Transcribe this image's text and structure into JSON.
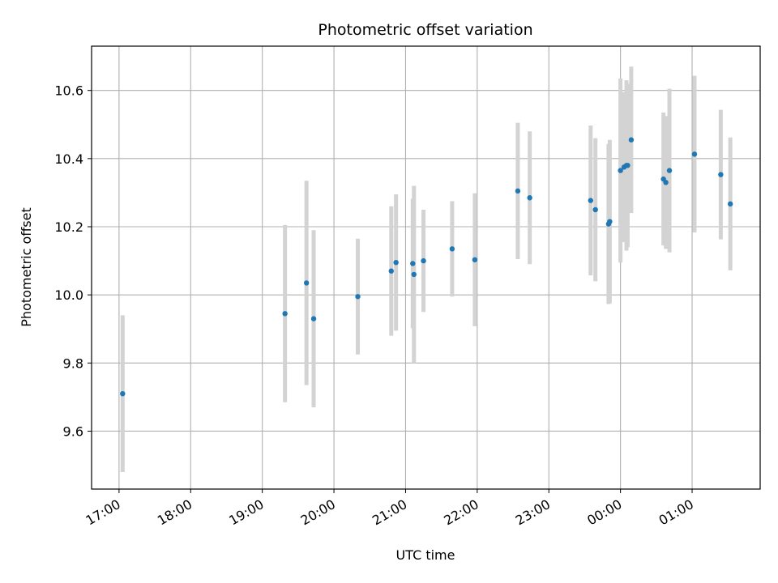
{
  "chart_data": {
    "type": "scatter",
    "title": "Photometric offset variation",
    "xlabel": "UTC time",
    "ylabel": "Photometric offset",
    "x_ticks": [
      "17:00",
      "18:00",
      "19:00",
      "20:00",
      "21:00",
      "22:00",
      "23:00",
      "00:00",
      "01:00"
    ],
    "y_ticks": [
      "9.6",
      "9.8",
      "10.0",
      "10.2",
      "10.4",
      "10.6"
    ],
    "xlim": [
      "16:37",
      "01:57"
    ],
    "ylim": [
      9.43,
      10.73
    ],
    "grid": true,
    "marker_color": "#1f77b4",
    "errorbar_color": "#d3d3d3",
    "series": [
      {
        "points": [
          {
            "x": "17:03",
            "y": 9.71,
            "yerr": 0.23
          },
          {
            "x": "19:19",
            "y": 9.945,
            "yerr": 0.26
          },
          {
            "x": "19:37",
            "y": 10.035,
            "yerr": 0.3
          },
          {
            "x": "19:43",
            "y": 9.93,
            "yerr": 0.26
          },
          {
            "x": "20:20",
            "y": 9.995,
            "yerr": 0.17
          },
          {
            "x": "20:48",
            "y": 10.07,
            "yerr": 0.19
          },
          {
            "x": "20:52",
            "y": 10.095,
            "yerr": 0.2
          },
          {
            "x": "21:06",
            "y": 10.092,
            "yerr": 0.19
          },
          {
            "x": "21:07",
            "y": 10.06,
            "yerr": 0.26
          },
          {
            "x": "21:15",
            "y": 10.1,
            "yerr": 0.15
          },
          {
            "x": "21:39",
            "y": 10.135,
            "yerr": 0.14
          },
          {
            "x": "21:58",
            "y": 10.103,
            "yerr": 0.195
          },
          {
            "x": "22:34",
            "y": 10.305,
            "yerr": 0.2
          },
          {
            "x": "22:44",
            "y": 10.285,
            "yerr": 0.195
          },
          {
            "x": "23:35",
            "y": 10.277,
            "yerr": 0.22
          },
          {
            "x": "23:39",
            "y": 10.25,
            "yerr": 0.21
          },
          {
            "x": "23:50",
            "y": 10.208,
            "yerr": 0.235
          },
          {
            "x": "23:51",
            "y": 10.215,
            "yerr": 0.24
          },
          {
            "x": "00:00",
            "y": 10.365,
            "yerr": 0.27
          },
          {
            "x": "00:03",
            "y": 10.375,
            "yerr": 0.22
          },
          {
            "x": "00:05",
            "y": 10.38,
            "yerr": 0.25
          },
          {
            "x": "00:06",
            "y": 10.38,
            "yerr": 0.24
          },
          {
            "x": "00:09",
            "y": 10.455,
            "yerr": 0.215
          },
          {
            "x": "00:36",
            "y": 10.34,
            "yerr": 0.195
          },
          {
            "x": "00:38",
            "y": 10.33,
            "yerr": 0.195
          },
          {
            "x": "00:41",
            "y": 10.365,
            "yerr": 0.24
          },
          {
            "x": "01:02",
            "y": 10.413,
            "yerr": 0.23
          },
          {
            "x": "01:24",
            "y": 10.353,
            "yerr": 0.19
          },
          {
            "x": "01:32",
            "y": 10.267,
            "yerr": 0.195
          }
        ]
      }
    ]
  }
}
